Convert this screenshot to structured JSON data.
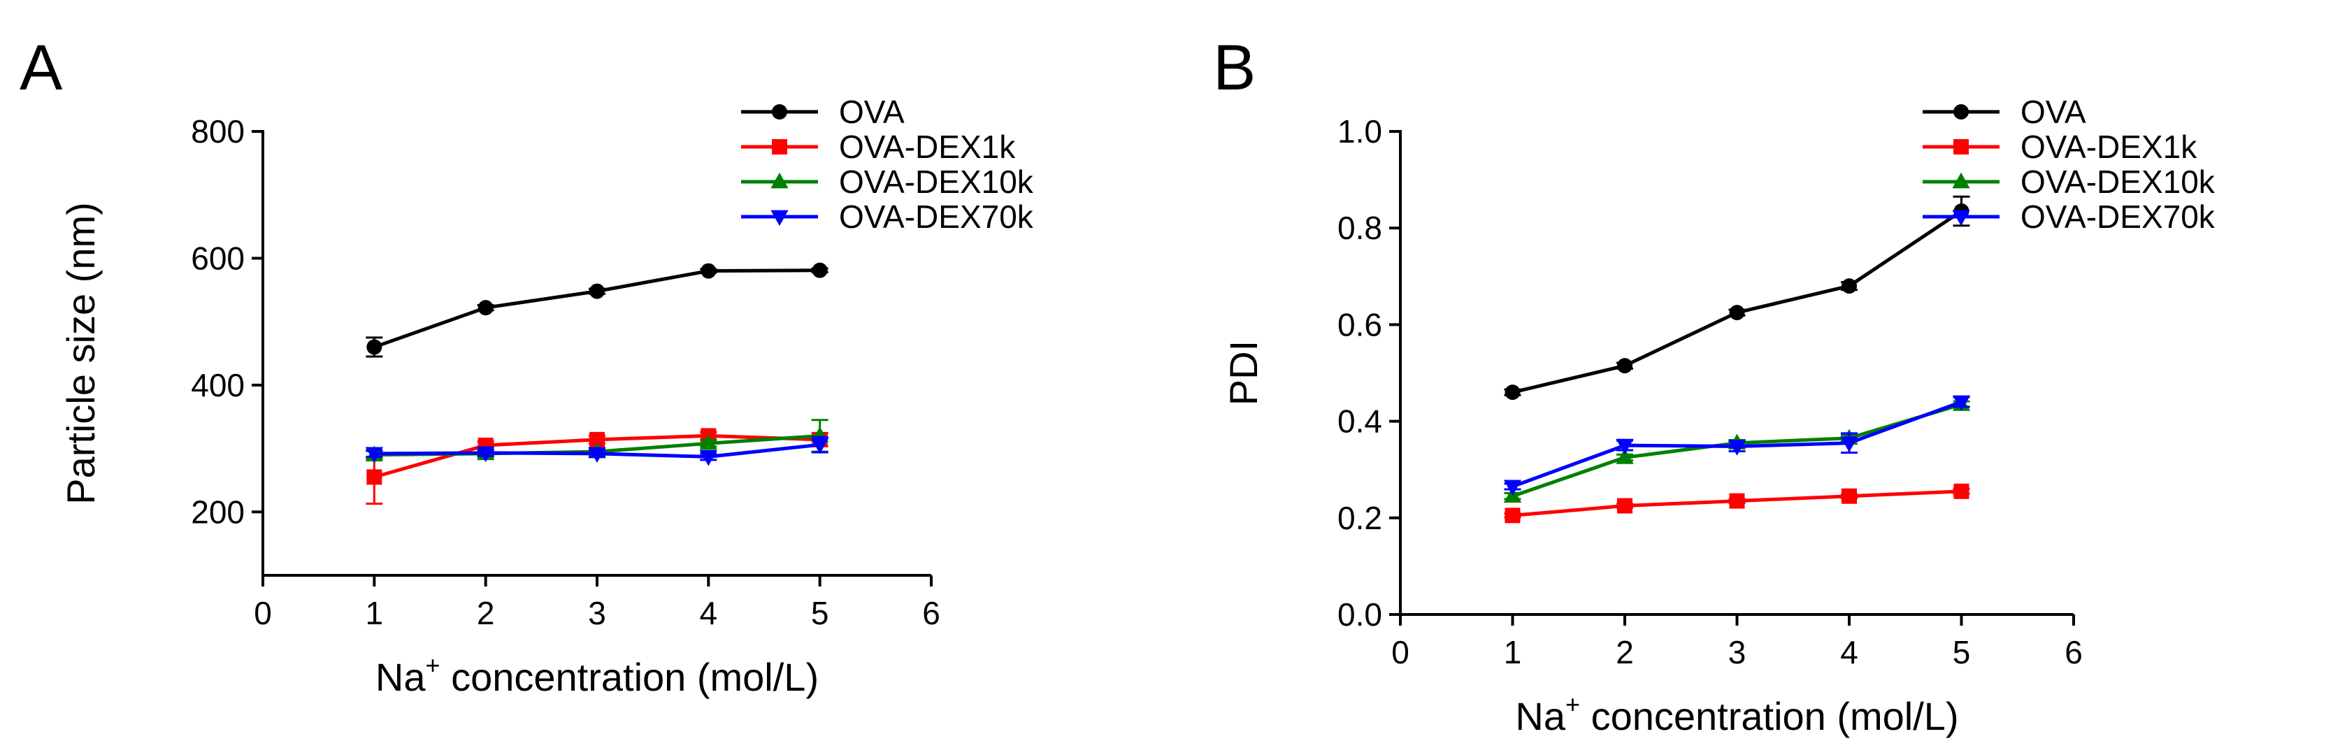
{
  "chart_data": [
    {
      "type": "line",
      "panel_label": "A",
      "title": "",
      "xlabel_prefix": "Na",
      "xlabel_sup": "+",
      "xlabel_suffix": " concentration (mol/L)",
      "ylabel": "Particle size (nm)",
      "xlim": [
        0,
        6
      ],
      "ylim": [
        100,
        800
      ],
      "xticks": [
        0,
        1,
        2,
        3,
        4,
        5,
        6
      ],
      "yticks": [
        200,
        400,
        600,
        800
      ],
      "x": [
        1,
        2,
        3,
        4,
        5
      ],
      "grid": false,
      "legend_position": "top-right",
      "series": [
        {
          "name": "OVA",
          "color": "#000000",
          "marker": "circle",
          "values": [
            460,
            522,
            548,
            580,
            581
          ],
          "errors": [
            15,
            4,
            4,
            3,
            3
          ]
        },
        {
          "name": "OVA-DEX1k",
          "color": "#ff0000",
          "marker": "square",
          "values": [
            255,
            305,
            314,
            320,
            314
          ],
          "errors": [
            42,
            6,
            6,
            6,
            10
          ]
        },
        {
          "name": "OVA-DEX10k",
          "color": "#008000",
          "marker": "triangle-up",
          "values": [
            290,
            292,
            295,
            308,
            320
          ],
          "errors": [
            6,
            5,
            5,
            5,
            25
          ]
        },
        {
          "name": "OVA-DEX70k",
          "color": "#0000ff",
          "marker": "triangle-down",
          "values": [
            292,
            293,
            292,
            287,
            306
          ],
          "errors": [
            5,
            5,
            5,
            5,
            12
          ]
        }
      ]
    },
    {
      "type": "line",
      "panel_label": "B",
      "title": "",
      "xlabel_prefix": "Na",
      "xlabel_sup": "+",
      "xlabel_suffix": " concentration (mol/L)",
      "ylabel": "PDI",
      "xlim": [
        0,
        6
      ],
      "ylim": [
        0,
        1
      ],
      "xticks": [
        0,
        1,
        2,
        3,
        4,
        5,
        6
      ],
      "yticks": [
        0.0,
        0.2,
        0.4,
        0.6,
        0.8,
        1.0
      ],
      "x": [
        1,
        2,
        3,
        4,
        5
      ],
      "grid": false,
      "legend_position": "top-right",
      "series": [
        {
          "name": "OVA",
          "color": "#000000",
          "marker": "circle",
          "values": [
            0.46,
            0.515,
            0.625,
            0.68,
            0.835
          ],
          "errors": [
            0.006,
            0.006,
            0.006,
            0.008,
            0.03
          ]
        },
        {
          "name": "OVA-DEX1k",
          "color": "#ff0000",
          "marker": "square",
          "values": [
            0.205,
            0.225,
            0.235,
            0.245,
            0.255
          ],
          "errors": [
            0.004,
            0.004,
            0.004,
            0.004,
            0.005
          ]
        },
        {
          "name": "OVA-DEX10k",
          "color": "#008000",
          "marker": "triangle-up",
          "values": [
            0.245,
            0.325,
            0.355,
            0.365,
            0.435
          ],
          "errors": [
            0.006,
            0.006,
            0.006,
            0.006,
            0.006
          ]
        },
        {
          "name": "OVA-DEX70k",
          "color": "#0000ff",
          "marker": "triangle-down",
          "values": [
            0.265,
            0.35,
            0.348,
            0.355,
            0.44
          ],
          "errors": [
            0.006,
            0.01,
            0.01,
            0.02,
            0.01
          ]
        }
      ]
    }
  ]
}
